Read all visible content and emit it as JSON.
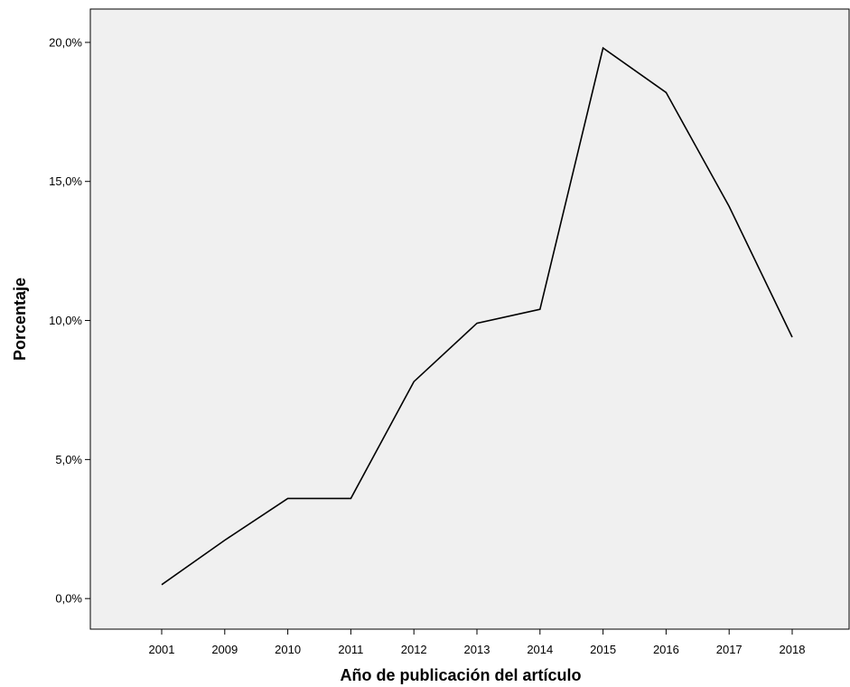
{
  "chart_data": {
    "type": "line",
    "title": "",
    "xlabel": "Año de publicación del artículo",
    "ylabel": "Porcentaje",
    "categories": [
      "2001",
      "2009",
      "2010",
      "2011",
      "2012",
      "2013",
      "2014",
      "2015",
      "2016",
      "2017",
      "2018"
    ],
    "series": [
      {
        "values": [
          0.5,
          2.1,
          3.6,
          3.6,
          7.8,
          9.9,
          10.4,
          19.8,
          18.2,
          14.1,
          9.4
        ]
      }
    ],
    "ylim": [
      -1.1,
      21.2
    ],
    "yticks": [
      0,
      5,
      10,
      15,
      20
    ],
    "ytick_labels": [
      "0,0%",
      "5,0%",
      "10,0%",
      "15,0%",
      "20,0%"
    ],
    "grid": false,
    "legend": "none",
    "colors": {
      "plot_background": "#f0f0f0",
      "line": "#000000",
      "axis": "#000000"
    }
  }
}
